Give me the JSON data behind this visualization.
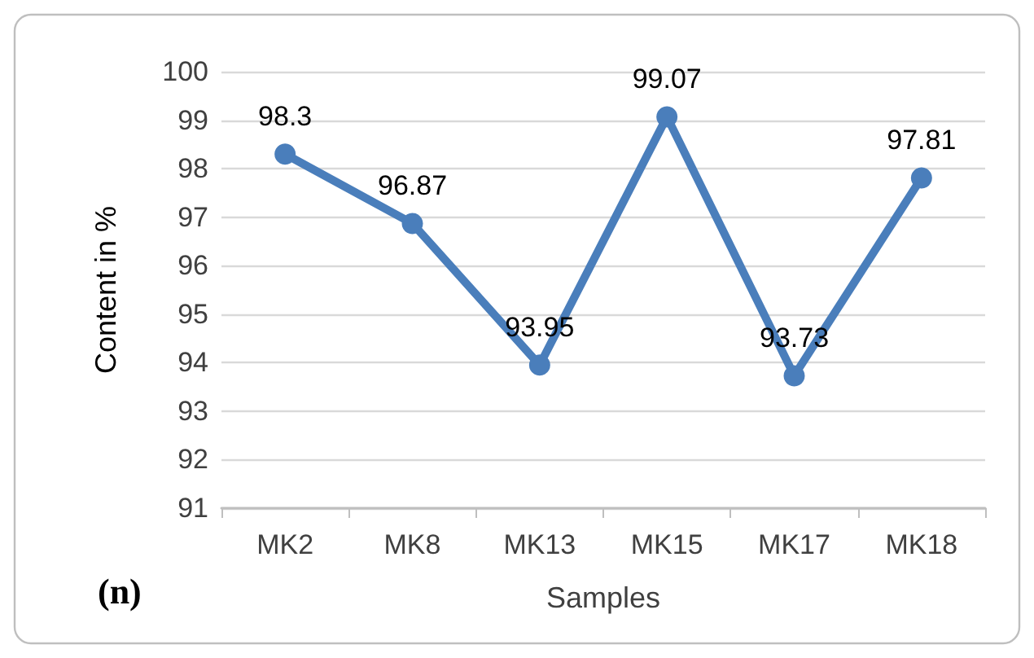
{
  "chart_data": {
    "type": "line",
    "xlabel": "Samples",
    "ylabel": "Content in %",
    "categories": [
      "MK2",
      "MK8",
      "MK13",
      "MK15",
      "MK17",
      "MK18"
    ],
    "series": [
      {
        "color": "#4a7ebb",
        "values": [
          98.3,
          96.87,
          93.95,
          99.07,
          93.73,
          97.81
        ]
      }
    ],
    "ylim": [
      91,
      100
    ],
    "yticks": [
      91,
      92,
      93,
      94,
      95,
      96,
      97,
      98,
      99,
      100
    ],
    "grid": "y",
    "marker": "circle",
    "line_style": "solid",
    "data_labels": true,
    "annotations": [
      "(n)"
    ]
  }
}
